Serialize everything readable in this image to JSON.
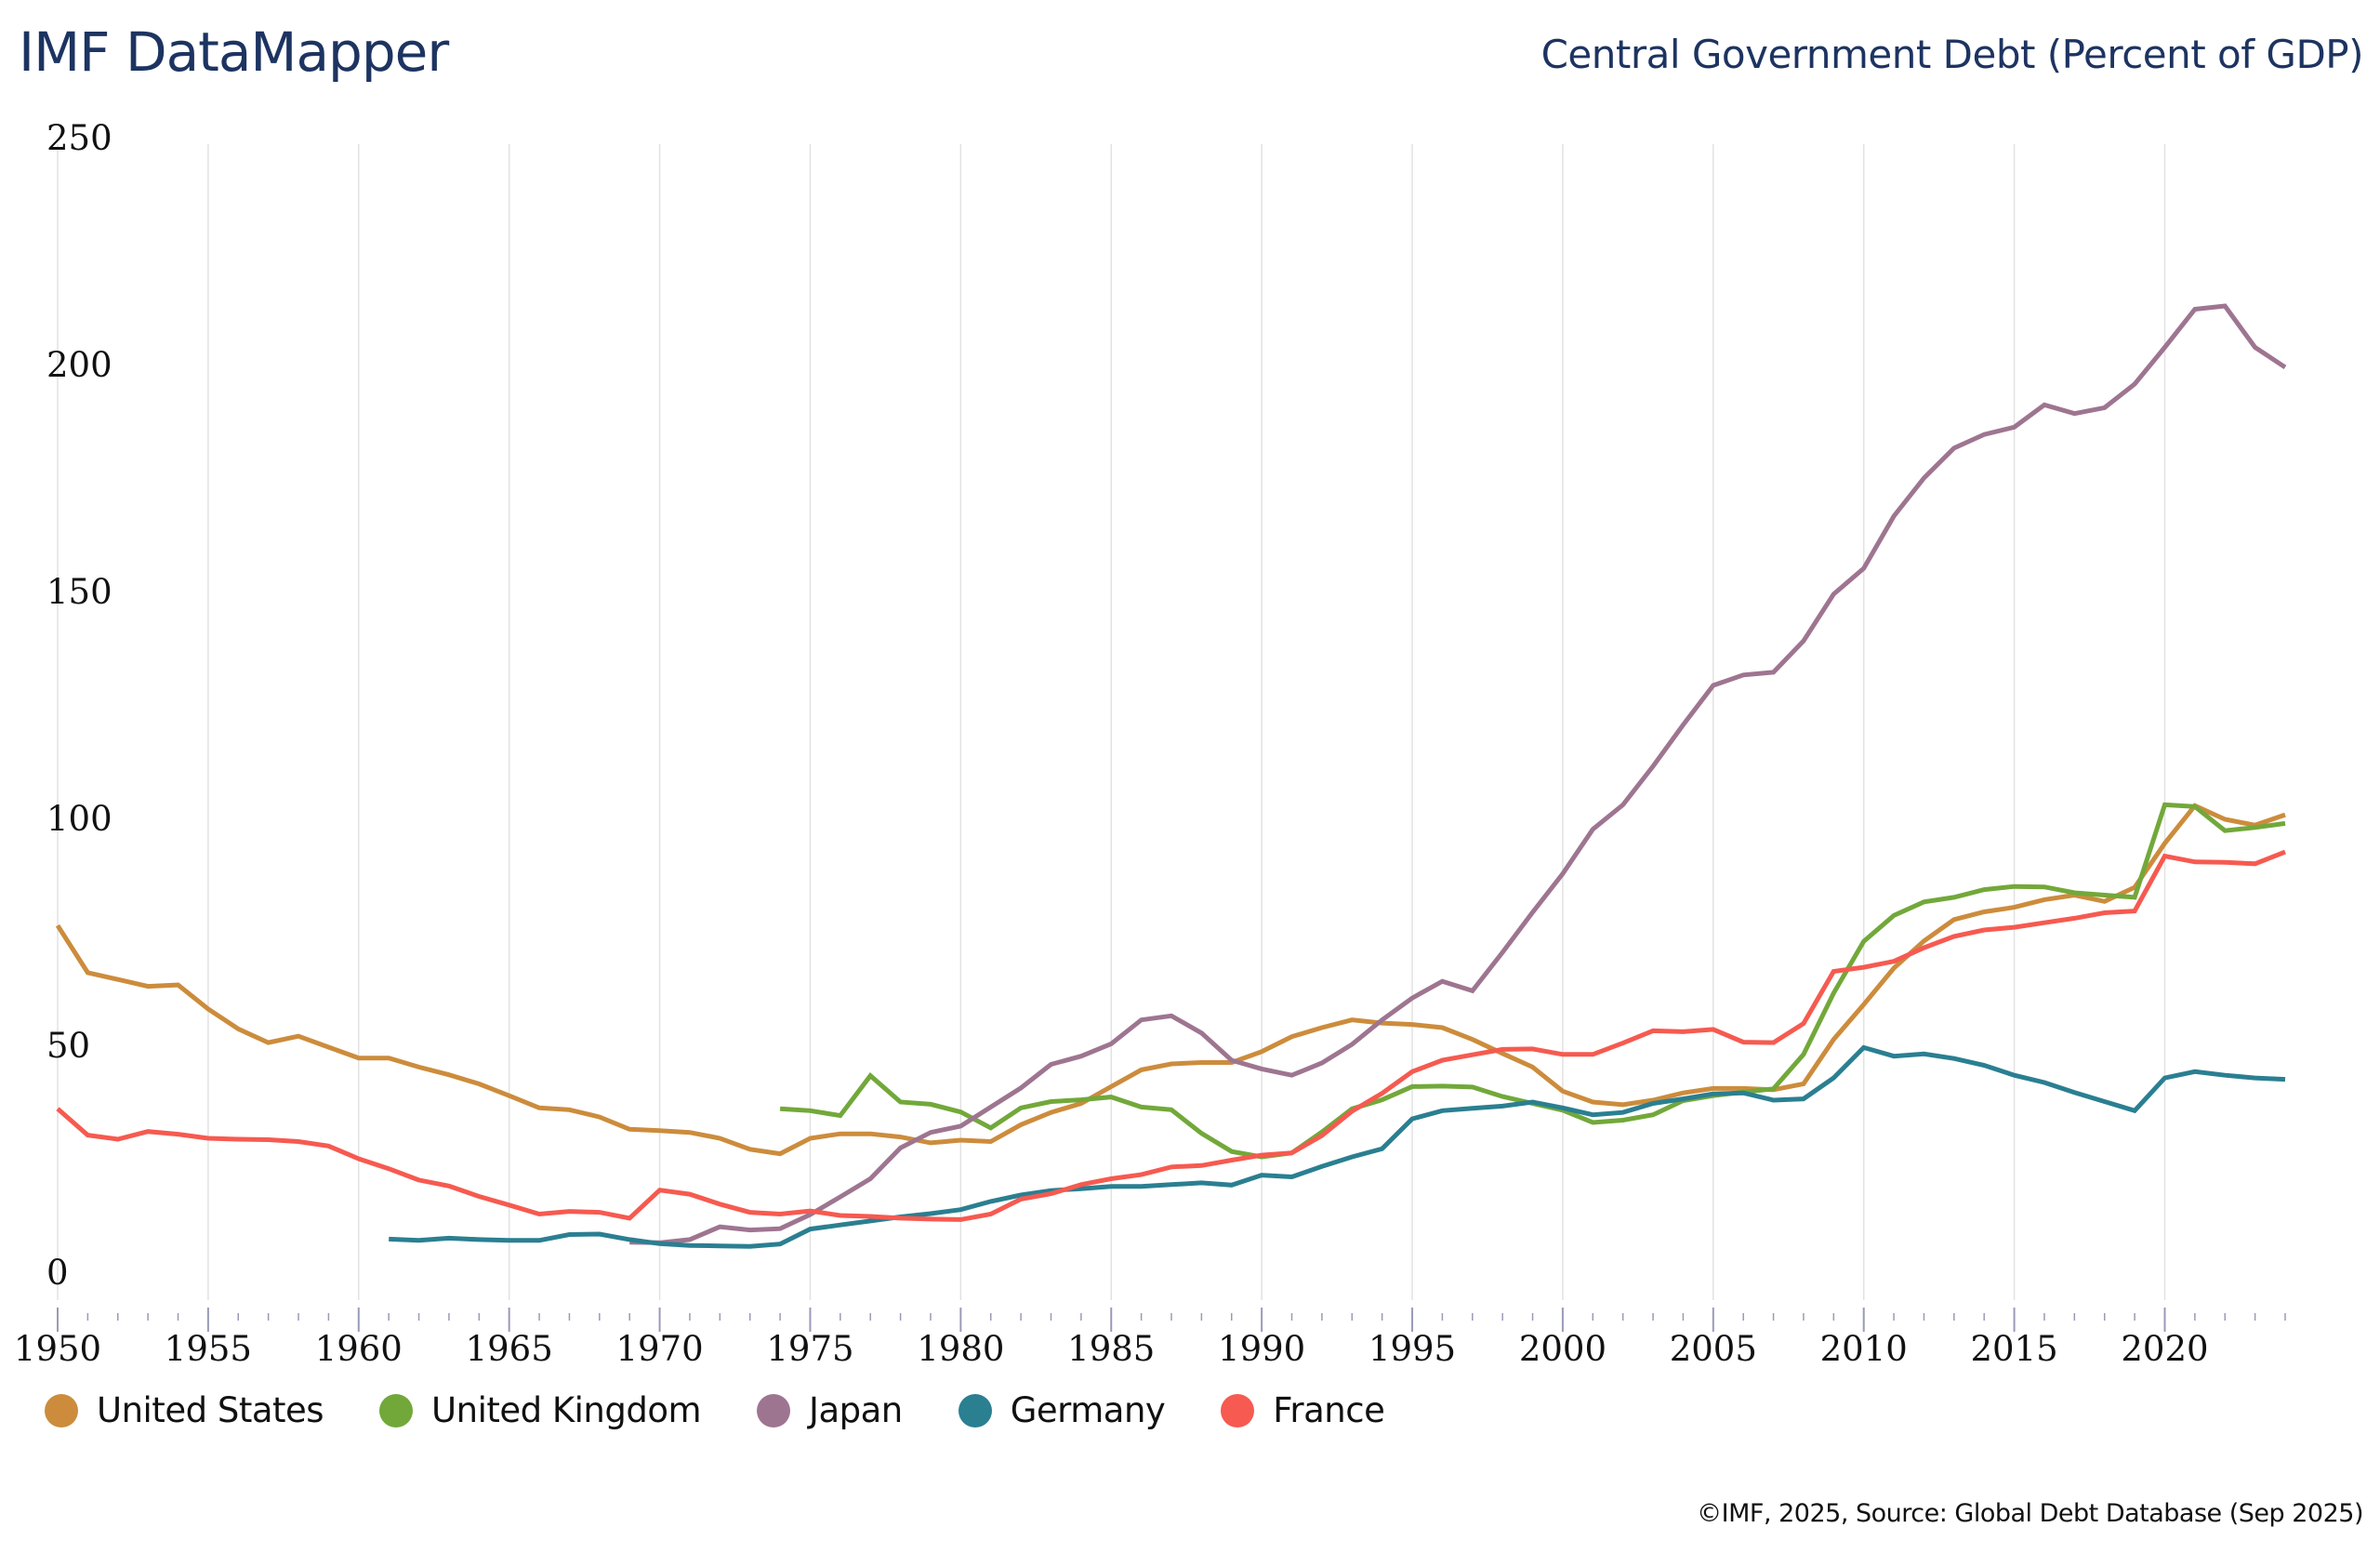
{
  "header": {
    "app_title": "IMF DataMapper",
    "indicator_title": "Central Government Debt (Percent of GDP)"
  },
  "footer": {
    "source": "©IMF, 2025, Source: Global Debt Database (Sep 2025)"
  },
  "chart_data": {
    "type": "line",
    "title": "Central Government Debt (Percent of GDP)",
    "xlabel": "",
    "ylabel": "",
    "xlim": [
      1950,
      2024
    ],
    "ylim": [
      0,
      250
    ],
    "x_ticks": [
      "1950",
      "1955",
      "1960",
      "1965",
      "1970",
      "1975",
      "1980",
      "1985",
      "1990",
      "1995",
      "2000",
      "2005",
      "2010",
      "2015",
      "2020"
    ],
    "y_ticks": [
      "0",
      "50",
      "100",
      "150",
      "200",
      "250"
    ],
    "grid": "vertical",
    "legend_position": "bottom-left",
    "series": [
      {
        "name": "United States",
        "color": "#cc8c3c",
        "start_year": 1950,
        "values": [
          76.4,
          66,
          64.5,
          63,
          63.3,
          58,
          53.6,
          50.6,
          52,
          49.6,
          47.2,
          47.2,
          45.2,
          43.5,
          41.5,
          38.9,
          36.2,
          35.8,
          34.2,
          31.5,
          31.2,
          30.8,
          29.5,
          27.1,
          26.1,
          29.5,
          30.5,
          30.5,
          29.8,
          28.5,
          29.1,
          28.8,
          32.5,
          35.2,
          37.2,
          40.9,
          44.6,
          45.9,
          46.2,
          46.2,
          48.6,
          51.9,
          53.9,
          55.6,
          54.9,
          54.6,
          53.9,
          51.3,
          48.2,
          45.2,
          39.9,
          37.5,
          36.9,
          37.9,
          39.5,
          40.5,
          40.5,
          40.2,
          41.5,
          51.3,
          59,
          67,
          73,
          77.7,
          79.4,
          80.4,
          82.1,
          83.1,
          81.7,
          84.8,
          94.5,
          102.8,
          99.8,
          98.5,
          100.8
        ]
      },
      {
        "name": "United Kingdom",
        "color": "#72a83a",
        "start_year": 1974,
        "values": [
          36,
          35.6,
          34.5,
          43.3,
          37.5,
          37,
          35.3,
          31.8,
          36.2,
          37.6,
          38,
          38.6,
          36.4,
          35.8,
          30.6,
          26.6,
          25.4,
          26.3,
          30.9,
          36,
          38,
          40.9,
          41,
          40.8,
          38.7,
          37.2,
          35.7,
          33,
          33.5,
          34.7,
          37.8,
          38.9,
          39.7,
          40.4,
          48,
          61.5,
          72.9,
          78.6,
          81.6,
          82.6,
          84.3,
          85,
          84.9,
          83.6,
          83.1,
          82.6,
          103,
          102.6,
          97.3,
          98,
          98.9
        ]
      },
      {
        "name": "Japan",
        "color": "#9e7590",
        "start_year": 1969,
        "values": [
          6.6,
          6.5,
          7.2,
          10,
          9.3,
          9.6,
          12.7,
          16.6,
          20.6,
          27.4,
          30.8,
          32.2,
          36.4,
          40.6,
          45.8,
          47.6,
          50.3,
          55.6,
          56.5,
          52.7,
          46.7,
          44.8,
          43.4,
          46.1,
          50.2,
          55.6,
          60.4,
          64.1,
          62,
          70.5,
          79.3,
          87.8,
          97.6,
          103,
          111.5,
          120.6,
          129.3,
          131.6,
          132.2,
          139.1,
          149.4,
          155.1,
          166.6,
          175,
          181.6,
          184.6,
          186.2,
          191.1,
          189.2,
          190.5,
          195.7,
          203.8,
          212.2,
          212.9,
          203.8,
          199.4
        ]
      },
      {
        "name": "Germany",
        "color": "#2a7f91",
        "start_year": 1961,
        "values": [
          7.3,
          7.0,
          7.5,
          7.2,
          7.0,
          7.0,
          8.3,
          8.4,
          7.2,
          6.3,
          5.9,
          5.8,
          5.7,
          6.2,
          9.5,
          10.4,
          11.3,
          12.2,
          12.9,
          13.8,
          15.6,
          17,
          18,
          18.4,
          18.9,
          18.9,
          19.3,
          19.7,
          19.2,
          21.4,
          21,
          23.3,
          25.4,
          27.2,
          33.8,
          35.6,
          36.1,
          36.6,
          37.5,
          36.2,
          34.7,
          35.2,
          37.2,
          38.2,
          39.3,
          39.5,
          37.9,
          38.2,
          42.8,
          49.5,
          47.6,
          48.1,
          47.1,
          45.6,
          43.4,
          41.8,
          39.6,
          37.6,
          35.6,
          42.8,
          44.2,
          43.4,
          42.8,
          42.5
        ]
      },
      {
        "name": "France",
        "color": "#f65a50",
        "start_year": 1950,
        "values": [
          36,
          30.2,
          29.3,
          31,
          30.4,
          29.5,
          29.3,
          29.2,
          28.8,
          27.8,
          25,
          22.8,
          20.3,
          19,
          16.7,
          14.8,
          12.8,
          13.4,
          13.2,
          11.9,
          18.1,
          17.2,
          15,
          13.2,
          12.8,
          13.5,
          12.5,
          12.3,
          11.9,
          11.7,
          11.6,
          12.8,
          16.1,
          17.3,
          19.3,
          20.6,
          21.5,
          23.2,
          23.5,
          24.7,
          25.8,
          26.3,
          30.1,
          35.5,
          39.4,
          44.2,
          46.7,
          47.9,
          49.1,
          49.2,
          48,
          48,
          50.5,
          53.2,
          53,
          53.5,
          50.7,
          50.6,
          54.8,
          66.3,
          67.2,
          68.5,
          71.5,
          74,
          75.4,
          76,
          77,
          78,
          79.2,
          79.6,
          91.7,
          90.4,
          90.3,
          90,
          92.6
        ]
      }
    ]
  }
}
